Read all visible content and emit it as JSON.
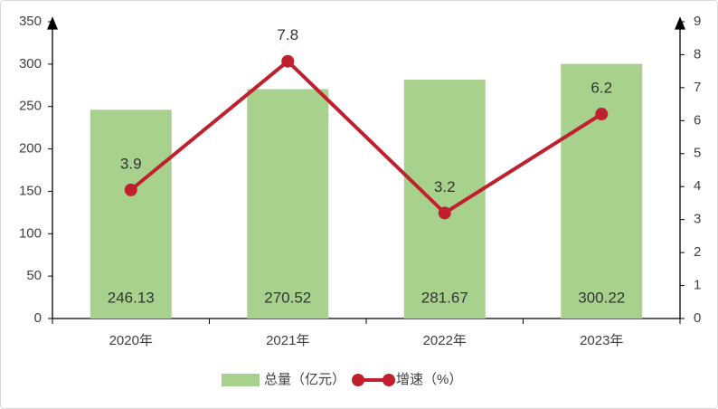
{
  "chart_data": {
    "type": "bar",
    "categories": [
      "2020年",
      "2021年",
      "2022年",
      "2023年"
    ],
    "series": [
      {
        "name": "总量（亿元）",
        "type": "bar",
        "color": "#a9d18e",
        "values": [
          246.13,
          270.52,
          281.67,
          300.22
        ]
      },
      {
        "name": "增速（%）",
        "type": "line",
        "axis": "y2",
        "color": "#c0202e",
        "values": [
          3.9,
          7.8,
          3.2,
          6.2
        ]
      }
    ],
    "ylim": [
      0,
      350
    ],
    "yticks": [
      0,
      50,
      100,
      150,
      200,
      250,
      300,
      350
    ],
    "y2lim": [
      0,
      9
    ],
    "y2ticks": [
      0,
      1,
      2,
      3,
      4,
      5,
      6,
      7,
      8,
      9
    ],
    "legend": "bottom"
  }
}
